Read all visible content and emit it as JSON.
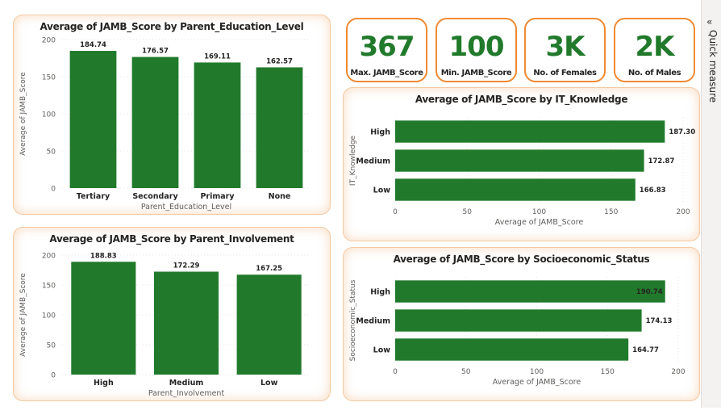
{
  "kpis": [
    {
      "value": "367",
      "label": "Max. JAMB_Score"
    },
    {
      "value": "100",
      "label": "Min. JAMB_Score"
    },
    {
      "value": "3K",
      "label": "No. of Females"
    },
    {
      "value": "2K",
      "label": "No. of Males"
    }
  ],
  "quick_measure": {
    "label": "Quick measure",
    "icon": "double-chevron-left-icon"
  },
  "bar_color": "#217a2b",
  "chart_data": [
    {
      "type": "bar",
      "title": "Average of JAMB_Score by Parent_Education_Level",
      "xlabel": "Parent_Education_Level",
      "ylabel": "Average of JAMB_Score",
      "categories": [
        "Tertiary",
        "Secondary",
        "Primary",
        "None"
      ],
      "values": [
        184.74,
        176.57,
        169.11,
        162.57
      ],
      "value_labels": [
        "184.74",
        "176.57",
        "169.11",
        "162.57"
      ],
      "ylim": [
        0,
        200
      ],
      "ticks": [
        0,
        50,
        100,
        150,
        200
      ],
      "grid": true
    },
    {
      "type": "bar",
      "title": "Average of JAMB_Score by Parent_Involvement",
      "xlabel": "Parent_Involvement",
      "ylabel": "Average of JAMB_Score",
      "categories": [
        "High",
        "Medium",
        "Low"
      ],
      "values": [
        188.83,
        172.29,
        167.25
      ],
      "value_labels": [
        "188.83",
        "172.29",
        "167.25"
      ],
      "ylim": [
        0,
        200
      ],
      "ticks": [
        0,
        50,
        100,
        150,
        200
      ],
      "grid": true
    },
    {
      "type": "bar",
      "orientation": "horizontal",
      "title": "Average of JAMB_Score by IT_Knowledge",
      "xlabel": "Average of JAMB_Score",
      "ylabel": "IT_Knowledge",
      "categories": [
        "High",
        "Medium",
        "Low"
      ],
      "values": [
        187.3,
        172.87,
        166.83
      ],
      "value_labels": [
        "187.30",
        "172.87",
        "166.83"
      ],
      "xlim": [
        0,
        200
      ],
      "ticks": [
        0,
        50,
        100,
        150,
        200
      ],
      "grid": true
    },
    {
      "type": "bar",
      "orientation": "horizontal",
      "title": "Average of JAMB_Score by Socioeconomic_Status",
      "xlabel": "Average of JAMB_Score",
      "ylabel": "Socioeconomic_Status",
      "categories": [
        "High",
        "Medium",
        "Low"
      ],
      "values": [
        190.74,
        174.13,
        164.77
      ],
      "value_labels": [
        "190.74",
        "174.13",
        "164.77"
      ],
      "xlim": [
        0,
        200
      ],
      "ticks": [
        0,
        50,
        100,
        150,
        200
      ],
      "grid": true
    }
  ]
}
